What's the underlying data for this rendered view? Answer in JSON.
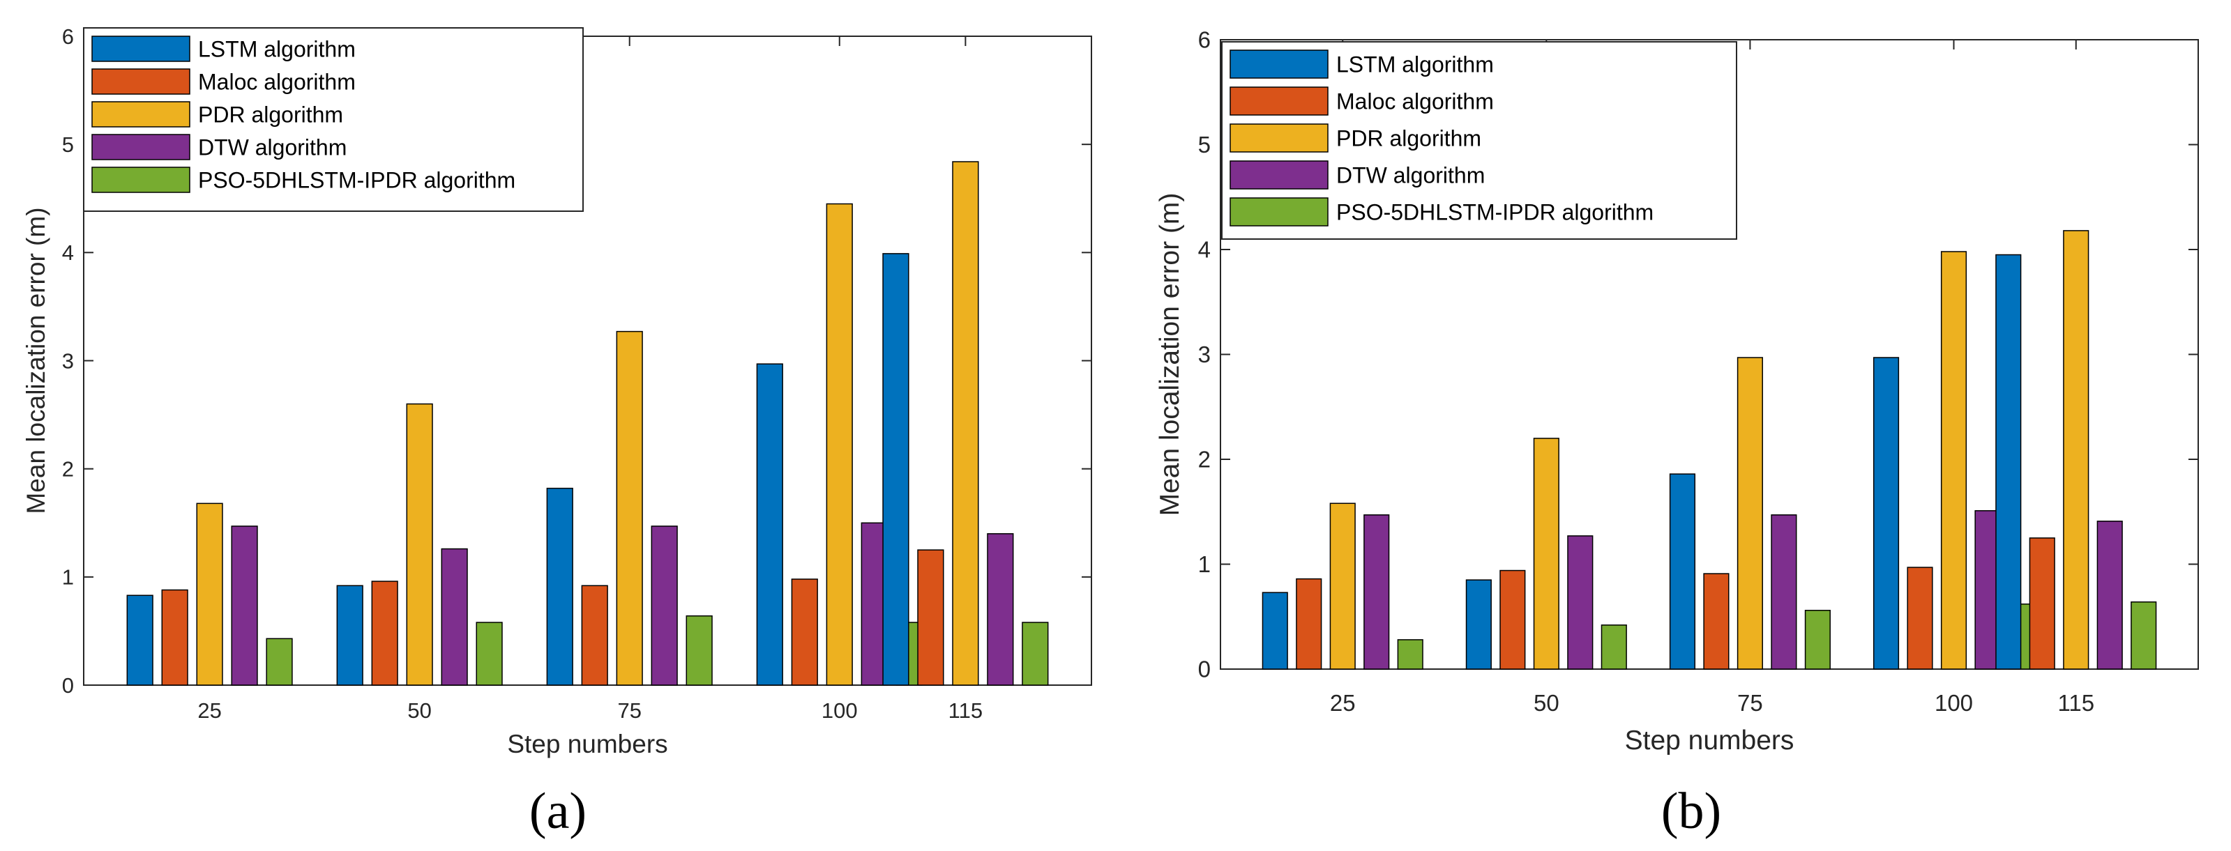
{
  "series_colors": [
    "#0072BD",
    "#D95319",
    "#EDB120",
    "#7E2F8E",
    "#77AC30"
  ],
  "chart_data": [
    {
      "type": "bar",
      "panel": "(a)",
      "categories": [
        "25",
        "50",
        "75",
        "100",
        "115"
      ],
      "x": [
        25,
        50,
        75,
        100,
        115
      ],
      "xlim": [
        10,
        130
      ],
      "ylim": [
        0,
        6
      ],
      "yticks": [
        "0",
        "1",
        "2",
        "3",
        "4",
        "5",
        "6"
      ],
      "xlabel": "Step numbers",
      "ylabel": "Mean localization error (m)",
      "legend_position": "top-left",
      "series": [
        {
          "name": "LSTM algorithm",
          "values": [
            0.83,
            0.92,
            1.82,
            2.97,
            3.99
          ]
        },
        {
          "name": "Maloc algorithm",
          "values": [
            0.88,
            0.96,
            0.92,
            0.98,
            1.25
          ]
        },
        {
          "name": "PDR algorithm",
          "values": [
            1.68,
            2.6,
            3.27,
            4.45,
            4.84
          ]
        },
        {
          "name": "DTW algorithm",
          "values": [
            1.47,
            1.26,
            1.47,
            1.5,
            1.4
          ]
        },
        {
          "name": "PSO-5DHLSTM-IPDR algorithm",
          "values": [
            0.43,
            0.58,
            0.64,
            0.58,
            0.58
          ]
        }
      ]
    },
    {
      "type": "bar",
      "panel": "(b)",
      "categories": [
        "25",
        "50",
        "75",
        "100",
        "115"
      ],
      "x": [
        25,
        50,
        75,
        100,
        115
      ],
      "xlim": [
        10,
        130
      ],
      "ylim": [
        0,
        6
      ],
      "yticks": [
        "0",
        "1",
        "2",
        "3",
        "4",
        "5",
        "6"
      ],
      "xlabel": "Step numbers",
      "ylabel": "Mean localization error (m)",
      "legend_position": "top-left",
      "series": [
        {
          "name": "LSTM algorithm",
          "values": [
            0.73,
            0.85,
            1.86,
            2.97,
            3.95
          ]
        },
        {
          "name": "Maloc algorithm",
          "values": [
            0.86,
            0.94,
            0.91,
            0.97,
            1.25
          ]
        },
        {
          "name": "PDR algorithm",
          "values": [
            1.58,
            2.2,
            2.97,
            3.98,
            4.18
          ]
        },
        {
          "name": "DTW algorithm",
          "values": [
            1.47,
            1.27,
            1.47,
            1.51,
            1.41
          ]
        },
        {
          "name": "PSO-5DHLSTM-IPDR algorithm",
          "values": [
            0.28,
            0.42,
            0.56,
            0.62,
            0.64
          ]
        }
      ]
    }
  ]
}
